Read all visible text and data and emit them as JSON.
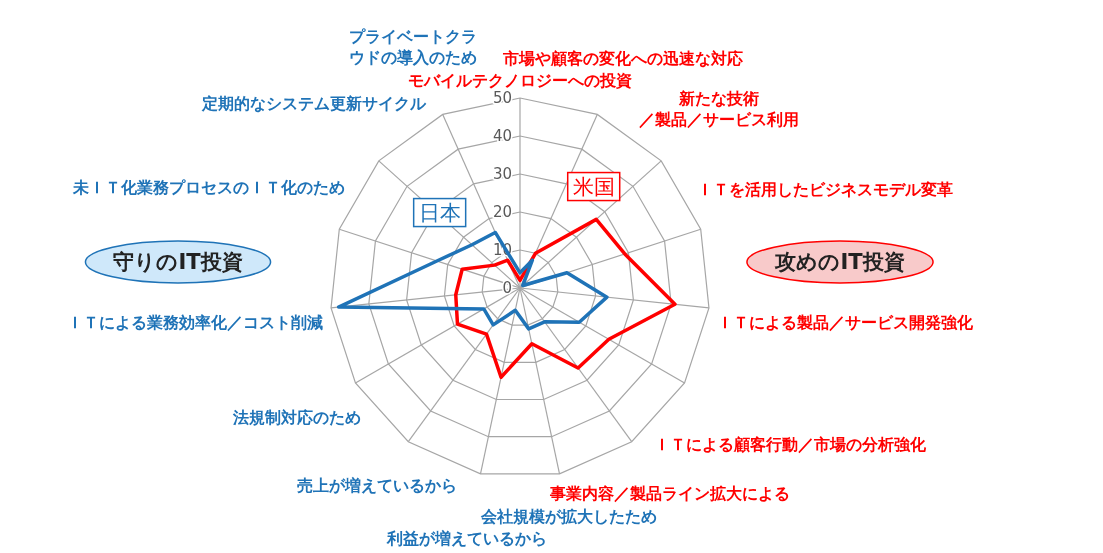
{
  "chart_data": {
    "type": "radar",
    "categories": [
      "モバイルテクノロジーへの投資",
      "市場や顧客の変化への迅速な対応",
      "新たな技術／製品／サービス利用",
      "ＩＴを活用したビジネスモデル変革",
      "ＩＴによる製品／サービス開発強化",
      "ＩＴによる顧客行動／市場の分析強化",
      "事業内容／製品ライン拡大による",
      "会社規模が拡大したため",
      "利益が増えているから",
      "売上が増えているから",
      "法規制対応のため",
      "ＩＴによる業務効率化／コスト削減",
      "未ＩＴ化業務プロセスのＩＴ化のため",
      "定期的なシステム更新サイクル",
      "プライベートクラウドの導入のため"
    ],
    "colors": [
      "#ff0000",
      "#ff0000",
      "#ff0000",
      "#ff0000",
      "#ff0000",
      "#ff0000",
      "#ff0000",
      "#1f73b7",
      "#1f73b7",
      "#1f73b7",
      "#1f73b7",
      "#1f73b7",
      "#1f73b7",
      "#1f73b7",
      "#1f73b7"
    ],
    "series": [
      {
        "name": "米国",
        "color": "#ff0000",
        "values": [
          2,
          10,
          27,
          29,
          41,
          27,
          26,
          15,
          24,
          15,
          19,
          17,
          16,
          9,
          8
        ]
      },
      {
        "name": "日本",
        "color": "#1f73b7",
        "values": [
          4,
          8,
          1,
          13,
          23,
          18,
          11,
          11,
          6,
          12,
          11,
          48,
          23,
          17,
          16
        ]
      }
    ],
    "ylim": [
      0,
      50
    ],
    "yticks": [
      0,
      10,
      20,
      30,
      40,
      50
    ],
    "grid": true,
    "annotations": [
      "攻めのIT投資",
      "守りのIT投資"
    ]
  }
}
